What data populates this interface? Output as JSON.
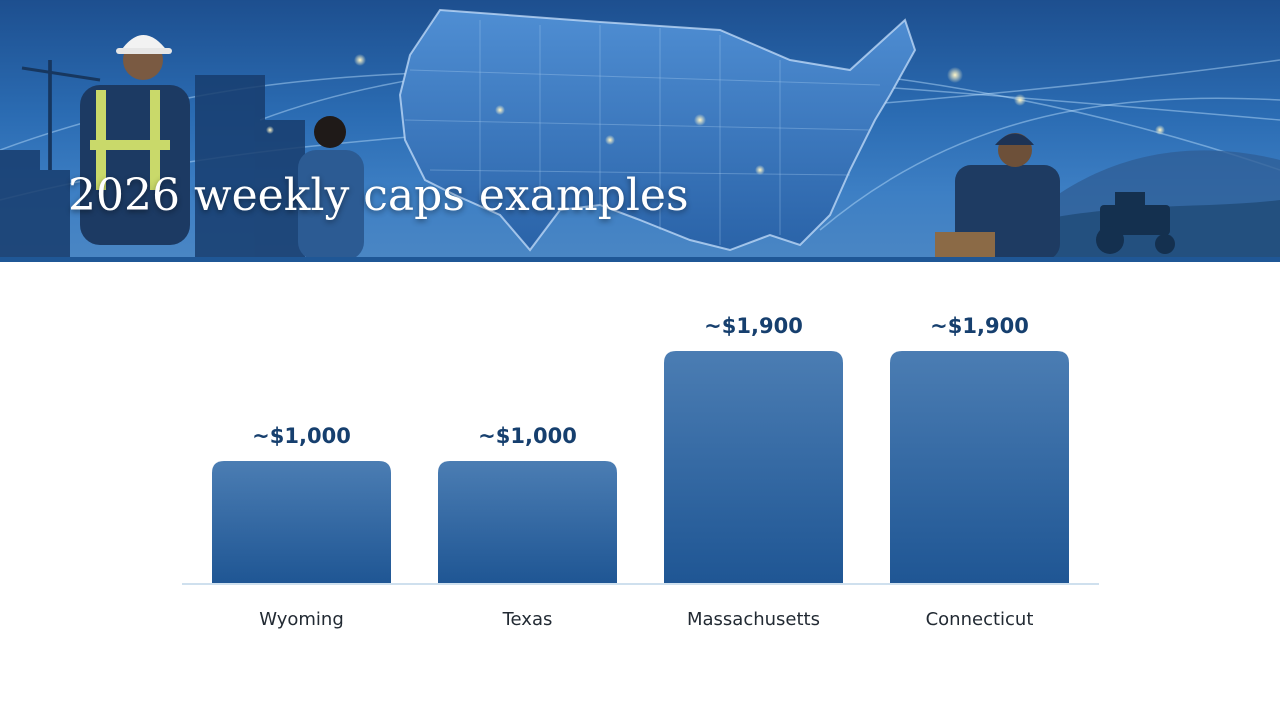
{
  "page": {
    "title": "2026 weekly caps examples"
  },
  "colors": {
    "bar_top": "#4b7db3",
    "bar_bottom": "#1f5694",
    "value_label": "#163f6e",
    "category_label": "#222a33",
    "baseline": "#cfe0ee",
    "banner_accent": "#1f5796"
  },
  "banner": {
    "image_description_icons": [
      "hard-hat-worker-icon",
      "us-map-icon",
      "crane-icon",
      "tractor-icon"
    ]
  },
  "chart_data": {
    "type": "bar",
    "title": "",
    "xlabel": "",
    "ylabel": "",
    "categories": [
      "Wyoming",
      "Texas",
      "Massachusetts",
      "Connecticut"
    ],
    "values": [
      1000,
      1000,
      1900,
      1900
    ],
    "value_labels": [
      "~$1,000",
      "~$1,000",
      "~$1,900",
      "~$1,900"
    ],
    "ylim": [
      0,
      2000
    ],
    "grid": false,
    "legend": "none"
  }
}
